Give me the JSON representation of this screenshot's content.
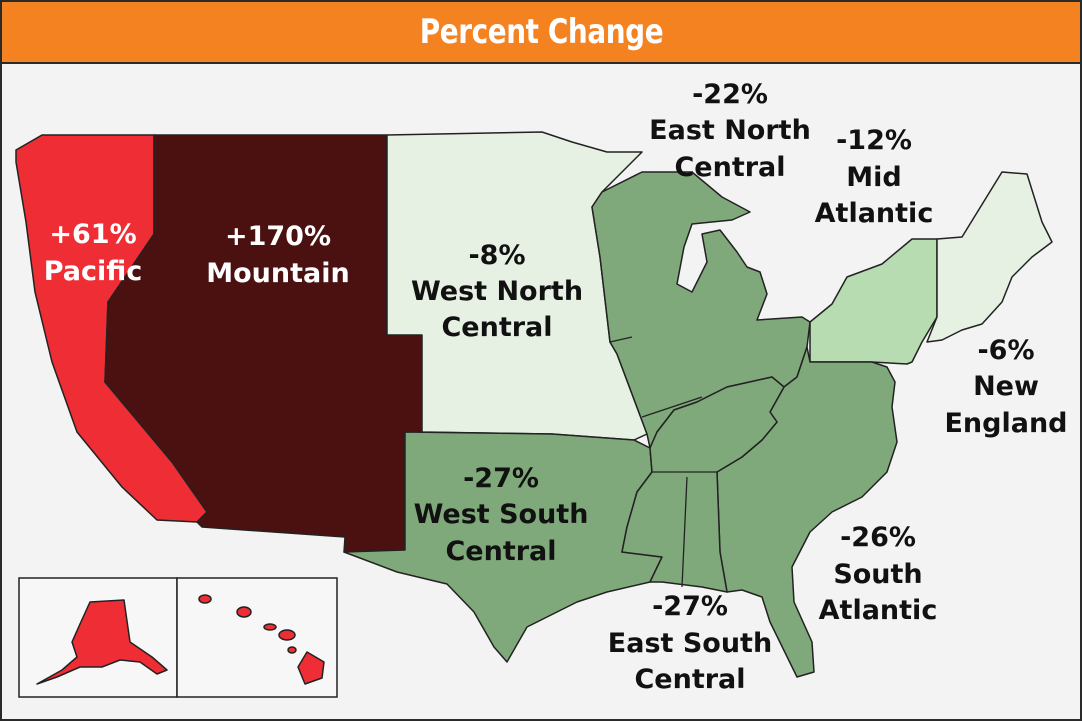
{
  "title": "Percent Change",
  "colors": {
    "header": "#f58220",
    "pacific": "#ee2e34",
    "mountain": "#4a1110",
    "west_north_central": "#e6f1e3",
    "new_england": "#e6f1e3",
    "mid_atlantic": "#b8dcb1",
    "decline_strong": "#80a97b"
  },
  "regions": [
    {
      "id": "pacific",
      "name": "Pacific",
      "change": "+61%"
    },
    {
      "id": "mountain",
      "name": "Mountain",
      "change": "+170%"
    },
    {
      "id": "west_north_central",
      "name_lines": [
        "West North",
        "Central"
      ],
      "change": "-8%"
    },
    {
      "id": "west_south_central",
      "name_lines": [
        "West South",
        "Central"
      ],
      "change": "-27%"
    },
    {
      "id": "east_north_central",
      "name_lines": [
        "East North",
        "Central"
      ],
      "change": "-22%"
    },
    {
      "id": "east_south_central",
      "name_lines": [
        "East South",
        "Central"
      ],
      "change": "-27%"
    },
    {
      "id": "mid_atlantic",
      "name_lines": [
        "Mid",
        "Atlantic"
      ],
      "change": "-12%"
    },
    {
      "id": "new_england",
      "name_lines": [
        "New",
        "England"
      ],
      "change": "-6%"
    },
    {
      "id": "south_atlantic",
      "name_lines": [
        "South",
        "Atlantic"
      ],
      "change": "-26%"
    }
  ],
  "insets": [
    "alaska",
    "hawaii"
  ]
}
